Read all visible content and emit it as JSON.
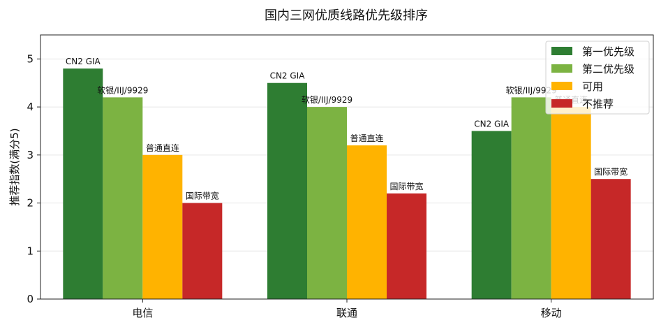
{
  "chart_data": {
    "type": "bar",
    "title": "国内三网优质线路优先级排序",
    "xlabel": "",
    "ylabel": "推荐指数(满分5)",
    "ylim": [
      0,
      5.5
    ],
    "yticks": [
      0,
      1,
      2,
      3,
      4,
      5
    ],
    "grid": "horizontal",
    "legend_position": "top-right",
    "categories": [
      "电信",
      "联通",
      "移动"
    ],
    "series": [
      {
        "name": "第一优先级",
        "color": "#2e7d32",
        "values": [
          4.8,
          4.5,
          3.5
        ],
        "labels": [
          "CN2 GIA",
          "CN2 GIA",
          "CN2 GIA"
        ]
      },
      {
        "name": "第二优先级",
        "color": "#7cb342",
        "values": [
          4.2,
          4.0,
          4.2
        ],
        "labels": [
          "软银/IIJ/9929",
          "软银/IIJ/9929",
          "软银/IIJ/9929"
        ]
      },
      {
        "name": "可用",
        "color": "#ffb300",
        "values": [
          3.0,
          3.2,
          4.0
        ],
        "labels": [
          "普通直连",
          "普通直连",
          "普通直连"
        ]
      },
      {
        "name": "不推荐",
        "color": "#c62828",
        "values": [
          2.0,
          2.2,
          2.5
        ],
        "labels": [
          "国际带宽",
          "国际带宽",
          "国际带宽"
        ]
      }
    ]
  }
}
